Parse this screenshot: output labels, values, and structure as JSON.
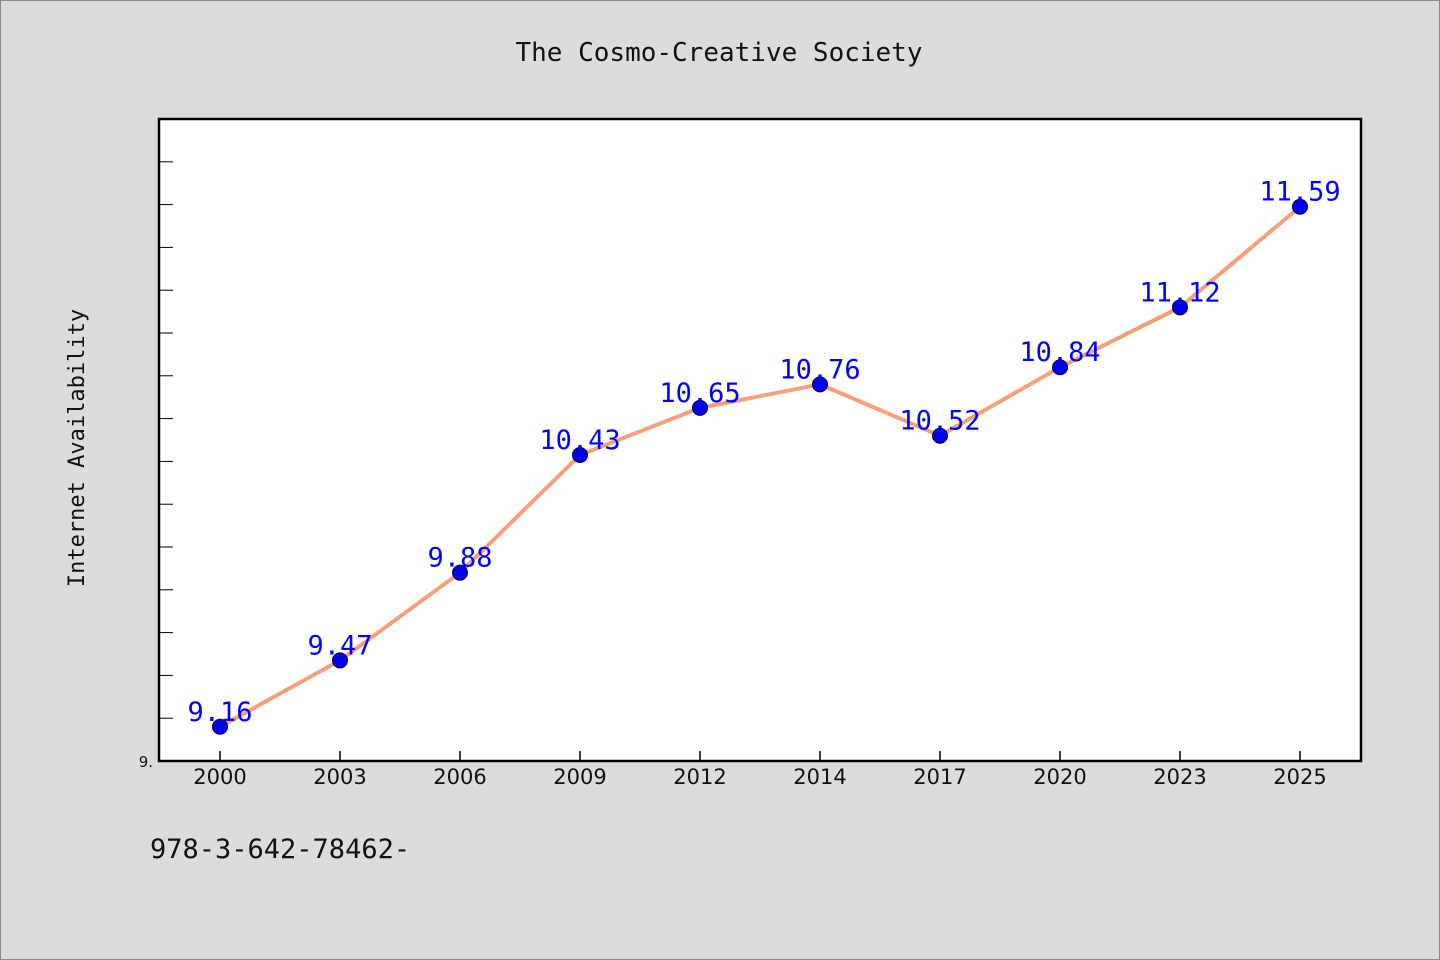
{
  "chart_data": {
    "type": "line",
    "title": "The Cosmo-Creative Society",
    "ylabel": "Internet Availability",
    "xlabel": "",
    "categories": [
      "2000",
      "2003",
      "2006",
      "2009",
      "2012",
      "2014",
      "2017",
      "2020",
      "2023",
      "2025"
    ],
    "series": [
      {
        "values": [
          9.16,
          9.47,
          9.88,
          10.43,
          10.65,
          10.76,
          10.52,
          10.84,
          11.12,
          11.59
        ],
        "line_color": "#f4a07a",
        "marker_color": "#0000ee",
        "label_color": "#0000ff"
      }
    ],
    "ylim": [
      9.0,
      12.0
    ],
    "y_tick_labels": [
      {
        "value": 9.0,
        "label": "9."
      }
    ],
    "grid": false,
    "legend": "none"
  },
  "footer": {
    "code": "978-3-642-78462-"
  }
}
